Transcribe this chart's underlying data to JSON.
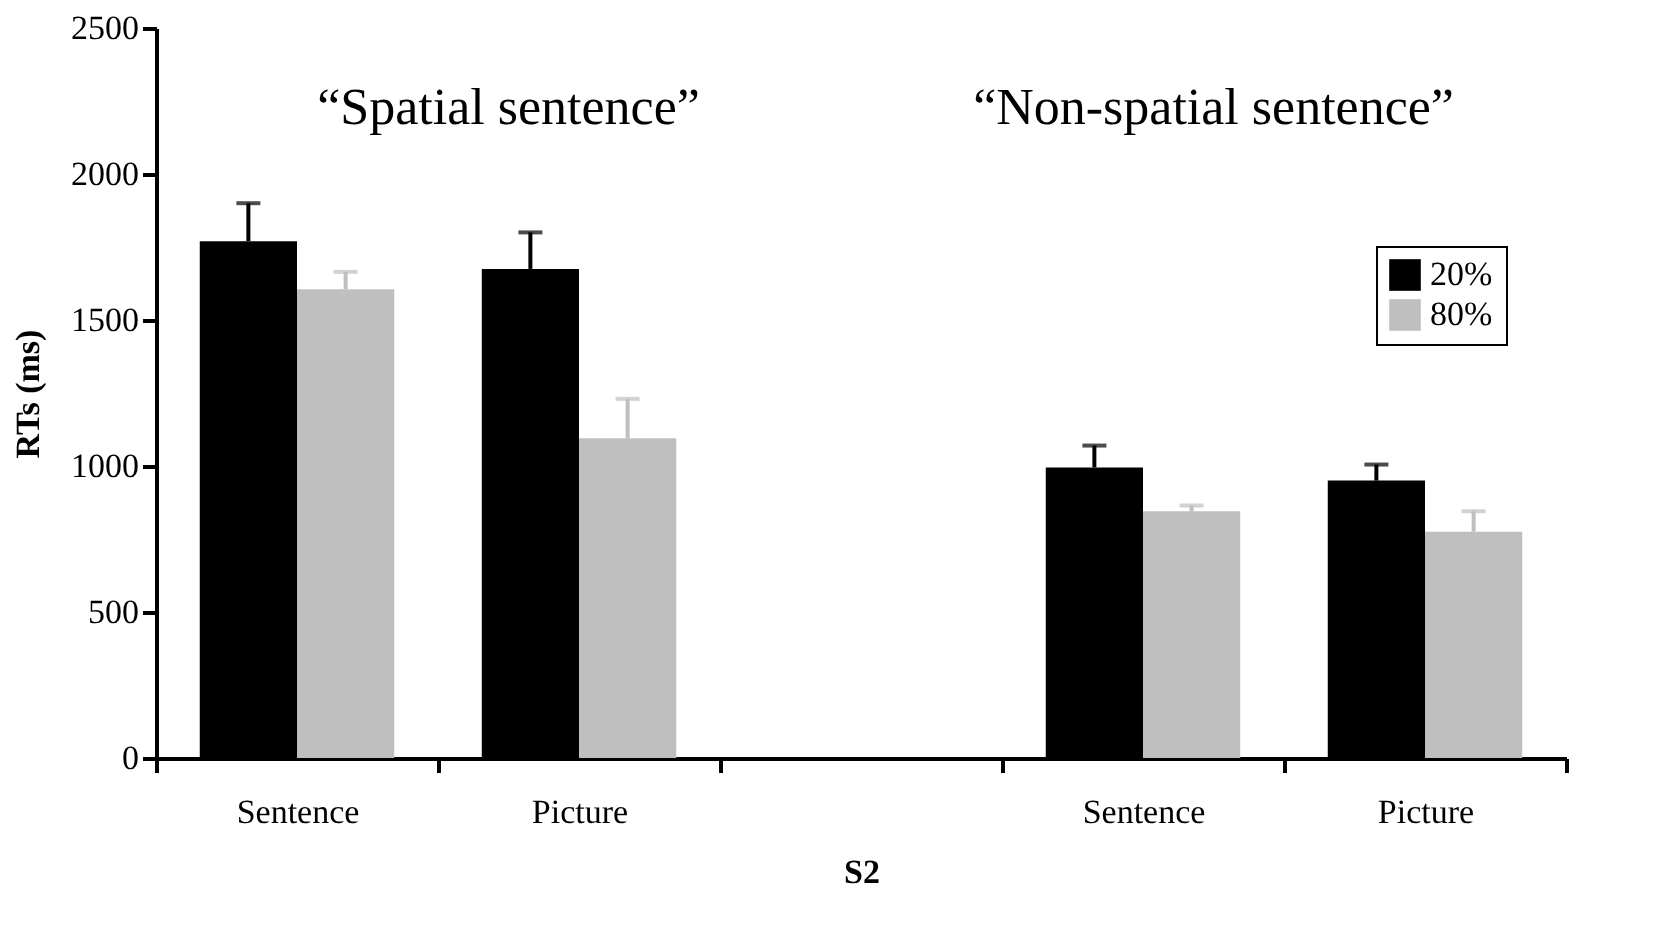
{
  "chart_data": {
    "type": "bar",
    "xlabel": "S2",
    "ylabel": "RTs (ms)",
    "categories": [
      "Sentence",
      "Picture",
      null,
      "Sentence",
      "Picture"
    ],
    "series": [
      {
        "name": "20%",
        "color": "#000000",
        "values": [
          1770,
          1675,
          null,
          995,
          950
        ],
        "errors": [
          [
            1770,
            1900
          ],
          [
            1675,
            1800
          ],
          null,
          [
            995,
            1070
          ],
          [
            950,
            1005
          ]
        ]
      },
      {
        "name": "80%",
        "color": "#bfbfbf",
        "values": [
          1605,
          1095,
          null,
          845,
          775
        ],
        "errors": [
          [
            1605,
            1665
          ],
          [
            1095,
            1230
          ],
          null,
          [
            845,
            865
          ],
          [
            775,
            845
          ]
        ]
      }
    ],
    "annotations": [
      "“Spatial sentence”",
      "“Non-spatial sentence”"
    ],
    "ylim": [
      0,
      2500
    ],
    "yticks": [
      0,
      500,
      1000,
      1500,
      2000,
      2500
    ],
    "grid": false,
    "legend": "right"
  }
}
